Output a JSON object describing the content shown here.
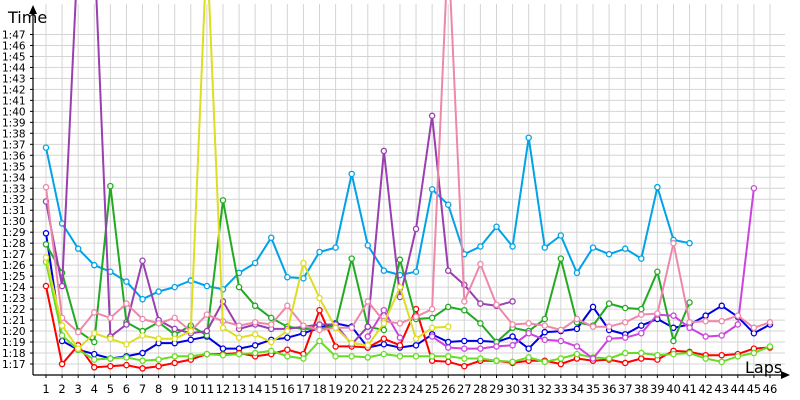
{
  "chart_data": {
    "type": "line",
    "title": "",
    "ylabel": "Time",
    "xlabel": "Laps",
    "grid": true,
    "ylim": [
      76.0,
      108.5
    ],
    "x": [
      1,
      2,
      3,
      4,
      5,
      6,
      7,
      8,
      9,
      10,
      11,
      12,
      13,
      14,
      15,
      16,
      17,
      18,
      19,
      20,
      21,
      22,
      23,
      24,
      25,
      26,
      27,
      28,
      29,
      30,
      31,
      32,
      33,
      34,
      35,
      36,
      37,
      38,
      39,
      40,
      41,
      42,
      43,
      44,
      45,
      46
    ],
    "xticks": [
      "1",
      "2",
      "3",
      "4",
      "5",
      "6",
      "7",
      "8",
      "9",
      "10",
      "11",
      "12",
      "13",
      "14",
      "15",
      "16",
      "17",
      "18",
      "19",
      "20",
      "21",
      "22",
      "23",
      "24",
      "25",
      "26",
      "27",
      "28",
      "29",
      "30",
      "31",
      "32",
      "33",
      "34",
      "35",
      "36",
      "37",
      "38",
      "39",
      "40",
      "41",
      "42",
      "43",
      "44",
      "45",
      "46"
    ],
    "yticks": [
      {
        "v": 77,
        "label": "1:17"
      },
      {
        "v": 78,
        "label": "1:18"
      },
      {
        "v": 79,
        "label": "1:19"
      },
      {
        "v": 80,
        "label": "1:20"
      },
      {
        "v": 81,
        "label": "1:21"
      },
      {
        "v": 82,
        "label": "1:22"
      },
      {
        "v": 83,
        "label": "1:23"
      },
      {
        "v": 84,
        "label": "1:24"
      },
      {
        "v": 85,
        "label": "1:25"
      },
      {
        "v": 86,
        "label": "1:26"
      },
      {
        "v": 87,
        "label": "1:27"
      },
      {
        "v": 88,
        "label": "1:28"
      },
      {
        "v": 89,
        "label": "1:29"
      },
      {
        "v": 90,
        "label": "1:30"
      },
      {
        "v": 91,
        "label": "1:31"
      },
      {
        "v": 92,
        "label": "1:32"
      },
      {
        "v": 93,
        "label": "1:33"
      },
      {
        "v": 94,
        "label": "1:34"
      },
      {
        "v": 95,
        "label": "1:35"
      },
      {
        "v": 96,
        "label": "1:36"
      },
      {
        "v": 97,
        "label": "1:37"
      },
      {
        "v": 98,
        "label": "1:38"
      },
      {
        "v": 99,
        "label": "1:39"
      },
      {
        "v": 100,
        "label": "1:40"
      },
      {
        "v": 101,
        "label": "1:41"
      },
      {
        "v": 102,
        "label": "1:42"
      },
      {
        "v": 103,
        "label": "1:43"
      },
      {
        "v": 104,
        "label": "1:44"
      },
      {
        "v": 105,
        "label": "1:45"
      },
      {
        "v": 106,
        "label": "1:46"
      },
      {
        "v": 107,
        "label": "1:47"
      }
    ],
    "series": [
      {
        "color": "#00a2e8",
        "values": [
          96.7,
          89.8,
          87.5,
          86.0,
          85.4,
          84.5,
          82.9,
          83.6,
          84.0,
          84.6,
          84.1,
          83.8,
          85.3,
          86.2,
          88.5,
          84.9,
          84.8,
          87.2,
          87.6,
          94.3,
          87.8,
          85.5,
          85.1,
          85.4,
          92.9,
          91.5,
          87.0,
          87.7,
          89.5,
          87.7,
          97.6,
          87.6,
          88.7,
          85.3,
          87.6,
          87.0,
          87.5,
          86.6,
          93.1,
          88.3,
          88.0,
          null,
          null,
          null,
          null,
          null
        ]
      },
      {
        "color": "#0000e0",
        "values": [
          88.9,
          79.1,
          78.3,
          77.9,
          77.5,
          77.7,
          78.0,
          78.9,
          78.9,
          79.2,
          79.5,
          78.4,
          78.4,
          78.7,
          79.2,
          79.4,
          79.8,
          80.3,
          80.7,
          80.4,
          78.5,
          78.8,
          78.5,
          78.7,
          79.7,
          79.0,
          79.1,
          79.1,
          79.0,
          79.5,
          78.4,
          79.9,
          80.0,
          80.2,
          82.2,
          80.1,
          79.7,
          80.5,
          81.1,
          80.3,
          80.6,
          81.4,
          82.3,
          81.3,
          79.8,
          80.6
        ]
      },
      {
        "color": "#ff0000",
        "values": [
          84.1,
          77.0,
          78.7,
          76.7,
          76.8,
          76.9,
          76.6,
          76.8,
          77.1,
          77.4,
          77.9,
          77.9,
          78.0,
          77.7,
          77.9,
          78.3,
          77.9,
          81.9,
          78.6,
          78.6,
          78.5,
          79.3,
          78.7,
          82.0,
          77.3,
          77.2,
          76.8,
          77.3,
          77.3,
          77.1,
          77.3,
          77.3,
          77.0,
          77.5,
          77.3,
          77.4,
          77.1,
          77.5,
          77.4,
          78.2,
          78.1,
          77.8,
          77.8,
          77.9,
          78.4,
          78.5
        ]
      },
      {
        "color": "#22aa22",
        "values": [
          87.9,
          85.3,
          80.0,
          79.0,
          93.2,
          80.8,
          80.0,
          80.8,
          79.7,
          80.5,
          79.6,
          91.9,
          84.0,
          82.3,
          81.2,
          80.4,
          80.2,
          80.2,
          80.5,
          86.6,
          80.4,
          80.1,
          86.5,
          81.1,
          81.2,
          82.2,
          81.9,
          80.7,
          79.0,
          80.3,
          80.0,
          81.1,
          86.6,
          80.8,
          80.5,
          82.5,
          82.1,
          82.0,
          85.4,
          79.1,
          82.6,
          null,
          null,
          null,
          null,
          null
        ]
      },
      {
        "color": "#66dd22",
        "values": [
          86.3,
          79.6,
          78.3,
          77.4,
          77.5,
          77.6,
          77.3,
          77.4,
          77.7,
          77.7,
          77.9,
          77.8,
          77.9,
          78.0,
          78.2,
          77.7,
          77.5,
          79.1,
          77.7,
          77.7,
          77.6,
          77.9,
          77.7,
          77.7,
          77.7,
          77.7,
          77.5,
          77.5,
          77.3,
          77.2,
          77.6,
          77.2,
          77.5,
          77.9,
          77.6,
          77.5,
          78.0,
          78.0,
          77.8,
          77.9,
          78.0,
          77.5,
          77.2,
          77.7,
          78.0,
          78.6
        ]
      },
      {
        "color": "#9a3fb0",
        "values": [
          91.8,
          84.1,
          115.0,
          115.0,
          79.5,
          80.6,
          86.4,
          81.0,
          80.2,
          79.8,
          80.0,
          82.7,
          80.2,
          80.6,
          80.2,
          80.2,
          80.4,
          80.6,
          80.6,
          78.8,
          80.4,
          96.4,
          83.1,
          89.3,
          99.6,
          85.5,
          84.2,
          82.5,
          82.3,
          82.7,
          null,
          null,
          null,
          null,
          null,
          null,
          null,
          null,
          null,
          null,
          null,
          null,
          null,
          null,
          null,
          null
        ]
      },
      {
        "color": "#cc44dd",
        "values": [
          null,
          null,
          null,
          null,
          null,
          null,
          null,
          null,
          null,
          null,
          null,
          null,
          null,
          null,
          null,
          null,
          null,
          null,
          null,
          null,
          79.5,
          81.9,
          79.4,
          null,
          79.5,
          78.5,
          78.4,
          78.4,
          78.6,
          78.7,
          79.8,
          79.2,
          79.1,
          78.6,
          77.5,
          79.3,
          79.4,
          79.8,
          81.5,
          81.4,
          80.3,
          79.5,
          79.6,
          80.6,
          93.0,
          null
        ]
      },
      {
        "color": "#ee88aa",
        "values": [
          93.1,
          81.2,
          79.9,
          81.7,
          81.2,
          82.5,
          81.1,
          80.7,
          81.2,
          80.0,
          81.5,
          80.9,
          80.5,
          80.8,
          80.6,
          82.3,
          80.5,
          80.1,
          80.3,
          80.3,
          82.7,
          80.9,
          80.7,
          81.3,
          82.0,
          115.0,
          82.7,
          86.1,
          82.4,
          80.6,
          80.7,
          80.5,
          80.1,
          81.1,
          80.4,
          80.4,
          80.8,
          81.5,
          81.6,
          88.0,
          80.8,
          80.9,
          80.9,
          81.4,
          80.3,
          80.8
        ]
      },
      {
        "color": "#dddd22",
        "values": [
          86.7,
          80.5,
          78.4,
          79.8,
          79.3,
          78.8,
          79.6,
          79.3,
          79.3,
          80.0,
          115.0,
          80.3,
          79.4,
          79.7,
          79.0,
          80.0,
          86.2,
          83.0,
          80.3,
          78.9,
          78.7,
          80.7,
          84.0,
          79.3,
          80.3,
          80.4,
          null,
          null,
          null,
          null,
          null,
          null,
          null,
          null,
          null,
          null,
          null,
          null,
          null,
          null,
          null,
          null,
          null,
          null,
          null,
          null
        ]
      }
    ]
  }
}
